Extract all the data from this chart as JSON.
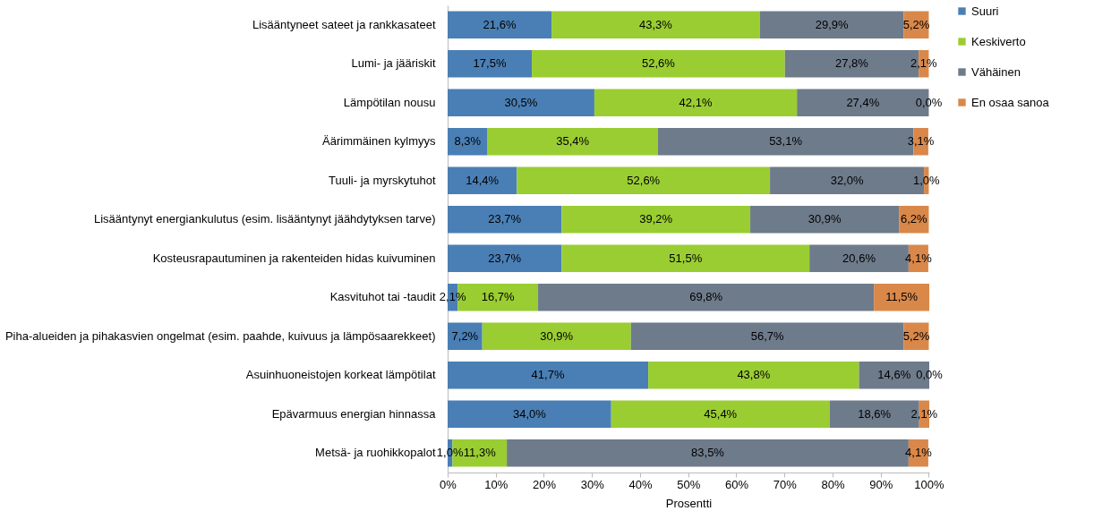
{
  "chart_data": {
    "type": "bar",
    "orientation": "horizontal",
    "stacked": true,
    "xlabel": "Prosentti",
    "legend": "right",
    "categories": [
      "Lisääntyneet sateet ja rankkasateet",
      "Lumi- ja jääriskit",
      "Lämpötilan nousu",
      "Äärimmäinen kylmyys",
      "Tuuli- ja myrskytuhot",
      "Lisääntynyt energiankulutus (esim. lisääntynyt jäähdytyksen tarve)",
      "Kosteusrapautuminen ja rakenteiden hidas kuivuminen",
      "Kasvituhot tai -taudit",
      "Piha-alueiden ja pihakasvien ongelmat (esim. paahde, kuivuus ja lämpösaarekkeet)",
      "Asuinhuoneistojen korkeat lämpötilat",
      "Epävarmuus energian hinnassa",
      "Metsä- ja ruohikkopalot"
    ],
    "series": [
      {
        "name": "Suuri",
        "color": "#4a7fb5",
        "values": [
          21.6,
          17.5,
          30.5,
          8.3,
          14.4,
          23.7,
          23.7,
          2.1,
          7.2,
          41.7,
          34.0,
          1.0
        ],
        "value_labels": [
          "21,6%",
          "17,5%",
          "30,5%",
          "8,3%",
          "14,4%",
          "23,7%",
          "23,7%",
          "2,1%",
          "7,2%",
          "41,7%",
          "34,0%",
          "1,0%"
        ]
      },
      {
        "name": "Keskiverto",
        "color": "#9acd32",
        "values": [
          43.3,
          52.6,
          42.1,
          35.4,
          52.6,
          39.2,
          51.5,
          16.7,
          30.9,
          43.8,
          45.4,
          11.3
        ],
        "value_labels": [
          "43,3%",
          "52,6%",
          "42,1%",
          "35,4%",
          "52,6%",
          "39,2%",
          "51,5%",
          "16,7%",
          "30,9%",
          "43,8%",
          "45,4%",
          "11,3%"
        ]
      },
      {
        "name": "Vähäinen",
        "color": "#6e7b8b",
        "values": [
          29.9,
          27.8,
          27.4,
          53.1,
          32.0,
          30.9,
          20.6,
          69.8,
          56.7,
          14.6,
          18.6,
          83.5
        ],
        "value_labels": [
          "29,9%",
          "27,8%",
          "27,4%",
          "53,1%",
          "32,0%",
          "30,9%",
          "20,6%",
          "69,8%",
          "56,7%",
          "14,6%",
          "18,6%",
          "83,5%"
        ]
      },
      {
        "name": "En osaa sanoa",
        "color": "#d9884a",
        "values": [
          5.2,
          2.1,
          0.0,
          3.1,
          1.0,
          6.2,
          4.1,
          11.5,
          5.2,
          0.0,
          2.1,
          4.1
        ],
        "value_labels": [
          "5,2%",
          "2,1%",
          "0,0%",
          "3,1%",
          "1,0%",
          "6,2%",
          "4,1%",
          "11,5%",
          "5,2%",
          "0,0%",
          "2,1%",
          "4,1%"
        ]
      }
    ],
    "xlim": [
      0,
      100.1
    ],
    "xticks": [
      {
        "value": 0,
        "label": "0%"
      },
      {
        "value": 10,
        "label": "10%"
      },
      {
        "value": 20,
        "label": "20%"
      },
      {
        "value": 30,
        "label": "30%"
      },
      {
        "value": 40,
        "label": "40%"
      },
      {
        "value": 50,
        "label": "50%"
      },
      {
        "value": 60,
        "label": "60%"
      },
      {
        "value": 70,
        "label": "70%"
      },
      {
        "value": 80,
        "label": "80%"
      },
      {
        "value": 90,
        "label": "90%"
      },
      {
        "value": 100,
        "label": "100%"
      }
    ]
  }
}
